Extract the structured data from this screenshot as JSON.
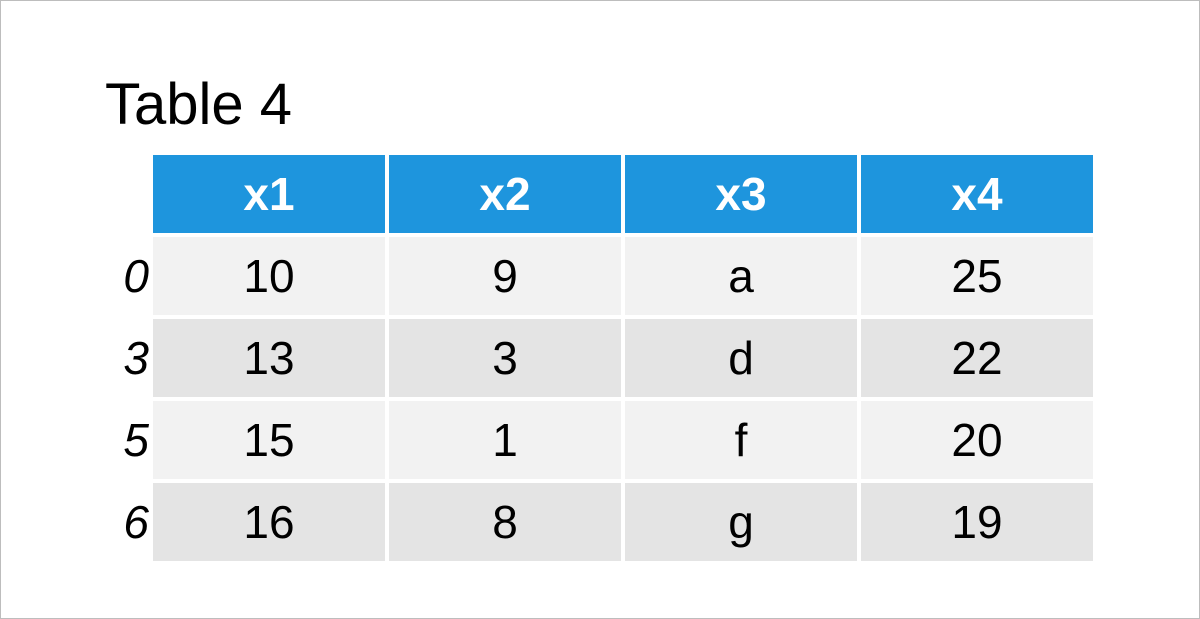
{
  "title": "Table 4",
  "table": {
    "columns": [
      "x1",
      "x2",
      "x3",
      "x4"
    ],
    "index": [
      "0",
      "3",
      "5",
      "6"
    ],
    "rows": [
      [
        "10",
        "9",
        "a",
        "25"
      ],
      [
        "13",
        "3",
        "d",
        "22"
      ],
      [
        "15",
        "1",
        "f",
        "20"
      ],
      [
        "16",
        "8",
        "g",
        "19"
      ]
    ]
  }
}
